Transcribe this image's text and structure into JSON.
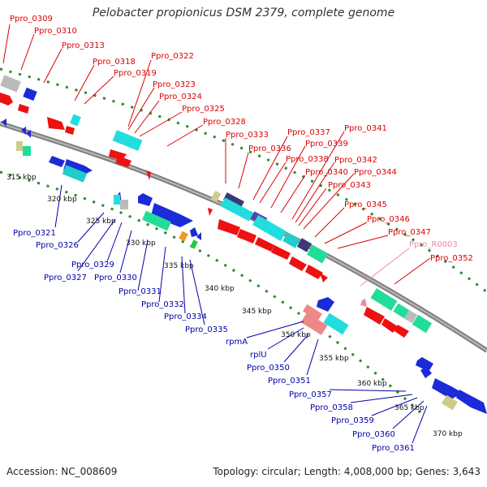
{
  "title": "Pelobacter propionicus DSM 2379, complete genome",
  "footer": {
    "accession": "Accession: NC_008609",
    "topology": "Topology: circular; Length: 4,008,000 bp; Genes: 3,643"
  },
  "colors": {
    "forward_label": "#dd0000",
    "reverse_label": "#0000aa",
    "rna_label": "#ee88aa",
    "backbone": "#888888",
    "dots": "#228822"
  },
  "ticks": [
    "315 kbp",
    "320 kbp",
    "325 kbp",
    "330 kbp",
    "335 kbp",
    "340 kbp",
    "345 kbp",
    "350 kbp",
    "355 kbp",
    "360 kbp",
    "365 kbp",
    "370 kbp"
  ],
  "forward_labels": [
    "Ppro_0309",
    "Ppro_0310",
    "Ppro_0313",
    "Ppro_0318",
    "Ppro_0319",
    "Ppro_0322",
    "Ppro_0323",
    "Ppro_0324",
    "Ppro_0325",
    "Ppro_0328",
    "Ppro_0333",
    "Ppro_0336",
    "Ppro_0337",
    "Ppro_0338",
    "Ppro_0339",
    "Ppro_0340",
    "Ppro_0341",
    "Ppro_0342",
    "Ppro_0343",
    "Ppro_0344",
    "Ppro_0345",
    "Ppro_0346",
    "Ppro_0347",
    "Ppro_R0003",
    "Ppro_0352"
  ],
  "reverse_labels": [
    "Ppro_0321",
    "Ppro_0326",
    "Ppro_0327",
    "Ppro_0329",
    "Ppro_0330",
    "Ppro_0331",
    "Ppro_0332",
    "Ppro_0334",
    "Ppro_0335",
    "rpmA",
    "rplU",
    "Ppro_0350",
    "Ppro_0351",
    "Ppro_0357",
    "Ppro_0358",
    "Ppro_0359",
    "Ppro_0360",
    "Ppro_0361"
  ]
}
